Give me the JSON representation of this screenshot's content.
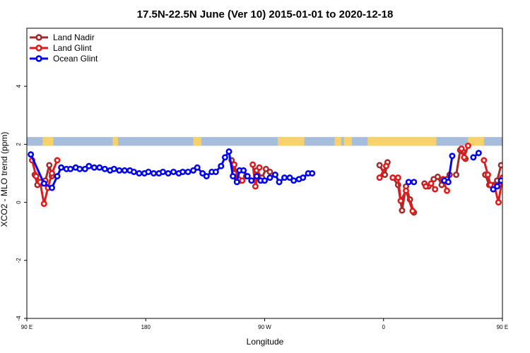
{
  "chart_data": {
    "type": "line",
    "title": "17.5N-22.5N June (Ver 10)   2015-01-01 to 2020-12-18",
    "xlabel": "Longitude",
    "ylabel": "XCO2 - MLO trend (ppm)",
    "xlim": [
      90,
      450
    ],
    "ylim": [
      -4,
      6
    ],
    "x_ticks": [
      {
        "value": 90,
        "label": "90 E"
      },
      {
        "value": 180,
        "label": "180"
      },
      {
        "value": 270,
        "label": "90 W"
      },
      {
        "value": 360,
        "label": "0"
      },
      {
        "value": 450,
        "label": "90 E"
      },
      {
        "value": 540,
        "label": "180"
      }
    ],
    "y_ticks": [
      {
        "value": -4,
        "label": "-4"
      },
      {
        "value": -2,
        "label": "-2"
      },
      {
        "value": 0,
        "label": "0"
      },
      {
        "value": 2,
        "label": "2"
      },
      {
        "value": 4,
        "label": "4"
      }
    ],
    "grid": false,
    "legend_position": "top-left",
    "land_mask_strip": {
      "y_range": [
        1.95,
        2.25
      ],
      "ocean_color": "#a6bddb",
      "land_color": "#f7d26a",
      "land_segments": [
        [
          102,
          110
        ],
        [
          155,
          159
        ],
        [
          216,
          222
        ],
        [
          280,
          300
        ],
        [
          323,
          328
        ],
        [
          330,
          336
        ],
        [
          348,
          400
        ],
        [
          424,
          436
        ],
        [
          452,
          470
        ]
      ]
    },
    "series": [
      {
        "name": "Land Nadir",
        "color": "#a52a2a",
        "segments": [
          [
            [
              96,
              0.95
            ],
            [
              98,
              0.6
            ],
            [
              101,
              0.65
            ],
            [
              104,
              0.75
            ],
            [
              107,
              1.28
            ],
            [
              109,
              0.9
            ]
          ],
          [
            [
              245,
              1.45
            ],
            [
              247,
              1.0
            ],
            [
              250,
              0.8
            ],
            [
              252,
              0.75
            ],
            [
              256,
              0.9
            ]
          ],
          [
            [
              264,
              1.1
            ],
            [
              268,
              0.85
            ],
            [
              271,
              1.15
            ],
            [
              274,
              1.05
            ]
          ],
          [
            [
              357,
              1.28
            ],
            [
              361,
              0.95
            ],
            [
              363,
              1.38
            ]
          ],
          [
            [
              367,
              0.85
            ],
            [
              371,
              0.6
            ],
            [
              374,
              -0.28
            ],
            [
              377,
              0.55
            ],
            [
              380,
              0.1
            ],
            [
              383,
              -0.35
            ]
          ],
          [
            [
              391,
              0.65
            ],
            [
              394,
              0.55
            ],
            [
              398,
              0.8
            ],
            [
              401,
              0.88
            ],
            [
              404,
              0.6
            ]
          ],
          [
            [
              408,
              0.8
            ],
            [
              410,
              0.95
            ]
          ],
          [
            [
              415,
              0.95
            ],
            [
              418,
              1.8
            ],
            [
              420,
              1.75
            ],
            [
              422,
              1.5
            ]
          ],
          [
            [
              437,
              0.95
            ],
            [
              440,
              0.6
            ],
            [
              443,
              0.6
            ],
            [
              446,
              0.75
            ],
            [
              449,
              1.28
            ]
          ]
        ]
      },
      {
        "name": "Land Glint",
        "color": "#e31a1c",
        "segments": [
          [
            [
              94,
              1.45
            ],
            [
              97,
              0.9
            ],
            [
              100,
              0.7
            ],
            [
              103,
              -0.05
            ],
            [
              106,
              0.5
            ],
            [
              109,
              1.0
            ],
            [
              113,
              1.45
            ]
          ],
          [
            [
              247,
              1.3
            ],
            [
              250,
              0.8
            ],
            [
              253,
              0.75
            ]
          ],
          [
            [
              261,
              1.3
            ],
            [
              263,
              0.55
            ],
            [
              266,
              1.2
            ]
          ],
          [
            [
              357,
              0.85
            ],
            [
              362,
              1.25
            ]
          ],
          [
            [
              367,
              0.85
            ],
            [
              371,
              0.85
            ],
            [
              373,
              0.05
            ],
            [
              377,
              0.4
            ],
            [
              382,
              -0.3
            ]
          ],
          [
            [
              392,
              0.55
            ],
            [
              396,
              0.65
            ],
            [
              399,
              0.45
            ]
          ],
          [
            [
              405,
              0.8
            ],
            [
              408,
              0.4
            ]
          ],
          [
            [
              419,
              1.85
            ],
            [
              421,
              1.55
            ],
            [
              424,
              1.95
            ]
          ],
          [
            [
              436,
              1.45
            ],
            [
              439,
              0.95
            ],
            [
              441,
              0.6
            ],
            [
              444,
              0.55
            ],
            [
              447,
              0.0
            ],
            [
              450,
              0.85
            ],
            [
              455,
              1.45
            ]
          ]
        ]
      },
      {
        "name": "Ocean Glint",
        "color": "#0000ff",
        "segments": [
          [
            [
              93,
              1.65
            ],
            [
              103,
              0.65
            ],
            [
              109,
              0.5
            ],
            [
              113,
              0.9
            ],
            [
              116,
              1.2
            ],
            [
              120,
              1.15
            ],
            [
              123,
              1.15
            ],
            [
              127,
              1.2
            ],
            [
              130,
              1.15
            ],
            [
              134,
              1.15
            ],
            [
              137,
              1.25
            ],
            [
              141,
              1.2
            ],
            [
              145,
              1.2
            ],
            [
              149,
              1.15
            ],
            [
              153,
              1.1
            ],
            [
              156,
              1.15
            ],
            [
              160,
              1.1
            ],
            [
              164,
              1.1
            ],
            [
              168,
              1.1
            ],
            [
              171,
              1.05
            ],
            [
              175,
              1.0
            ],
            [
              179,
              1.0
            ],
            [
              182,
              1.05
            ],
            [
              186,
              1.0
            ],
            [
              190,
              1.0
            ],
            [
              193,
              1.05
            ],
            [
              197,
              1.0
            ],
            [
              201,
              1.05
            ],
            [
              205,
              1.0
            ],
            [
              208,
              1.05
            ],
            [
              212,
              1.05
            ],
            [
              216,
              1.1
            ],
            [
              219,
              1.2
            ],
            [
              223,
              1.0
            ],
            [
              226,
              0.9
            ],
            [
              230,
              1.05
            ],
            [
              233,
              1.05
            ],
            [
              237,
              1.25
            ],
            [
              240,
              1.55
            ],
            [
              243,
              1.75
            ],
            [
              246,
              0.9
            ],
            [
              249,
              0.7
            ],
            [
              251,
              1.1
            ],
            [
              254,
              1.1
            ],
            [
              257,
              0.9
            ],
            [
              260,
              0.75
            ],
            [
              264,
              0.9
            ],
            [
              267,
              0.75
            ],
            [
              270,
              0.75
            ],
            [
              274,
              0.85
            ],
            [
              278,
              0.95
            ],
            [
              281,
              0.7
            ],
            [
              285,
              0.85
            ],
            [
              289,
              0.85
            ],
            [
              292,
              0.75
            ],
            [
              296,
              0.8
            ],
            [
              299,
              0.85
            ],
            [
              303,
              1.0
            ],
            [
              306,
              1.0
            ]
          ],
          [
            [
              379,
              0.7
            ],
            [
              383,
              0.7
            ]
          ],
          [
            [
              406,
              0.75
            ],
            [
              409,
              0.7
            ],
            [
              412,
              1.6
            ]
          ],
          [
            [
              428,
              1.55
            ],
            [
              432,
              1.7
            ]
          ],
          [
            [
              443,
              0.45
            ],
            [
              446,
              0.55
            ],
            [
              449,
              0.75
            ],
            [
              452,
              0.9
            ],
            [
              455,
              0.95
            ],
            [
              458,
              1.25
            ],
            [
              462,
              1.2
            ],
            [
              465,
              1.15
            ],
            [
              469,
              1.25
            ],
            [
              472,
              1.15
            ],
            [
              476,
              1.2
            ],
            [
              479,
              1.25
            ],
            [
              483,
              1.2
            ],
            [
              486,
              1.2
            ],
            [
              490,
              1.15
            ],
            [
              493,
              1.2
            ],
            [
              497,
              1.1
            ]
          ]
        ]
      }
    ]
  }
}
